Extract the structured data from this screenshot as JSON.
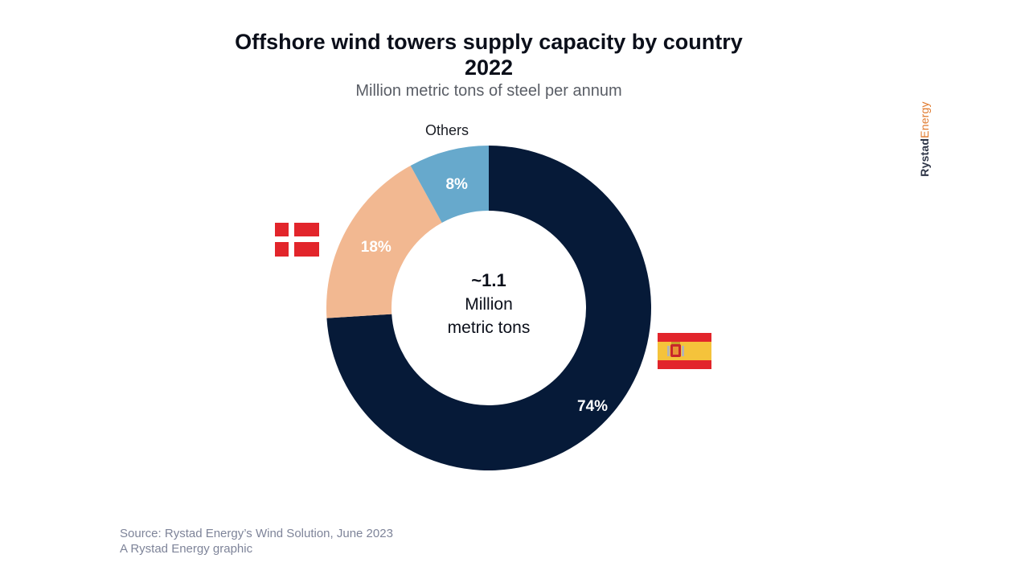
{
  "header": {
    "title_line1": "Offshore wind towers supply capacity by country",
    "title_line2": "2022",
    "subtitle": "Million metric tons of steel per annum"
  },
  "brand": {
    "part1": "Rystad",
    "part2": "Energy"
  },
  "footer": {
    "source": "Source: Rystad Energy’s Wind Solution,  June 2023",
    "credit": "A Rystad Energy graphic"
  },
  "colors": {
    "spain": "#061a38",
    "denmark": "#f2b891",
    "others": "#67a9cc",
    "flag_red": "#e2252b",
    "flag_yellow": "#f5c33b"
  },
  "chart_data": {
    "type": "pie",
    "donut": true,
    "title": "Offshore wind towers supply capacity by country 2022",
    "subtitle": "Million metric tons of steel per annum",
    "center_label": {
      "value": "~1.1",
      "unit_line1": "Million",
      "unit_line2": "metric tons"
    },
    "slices": [
      {
        "name": "Spain",
        "label": "74%",
        "value": 74,
        "color": "#061a38",
        "legend": "spain-flag-icon"
      },
      {
        "name": "Denmark",
        "label": "18%",
        "value": 18,
        "color": "#f2b891",
        "legend": "denmark-flag-icon"
      },
      {
        "name": "Others",
        "label": "8%",
        "value": 8,
        "color": "#67a9cc",
        "legend": "Others"
      }
    ]
  }
}
